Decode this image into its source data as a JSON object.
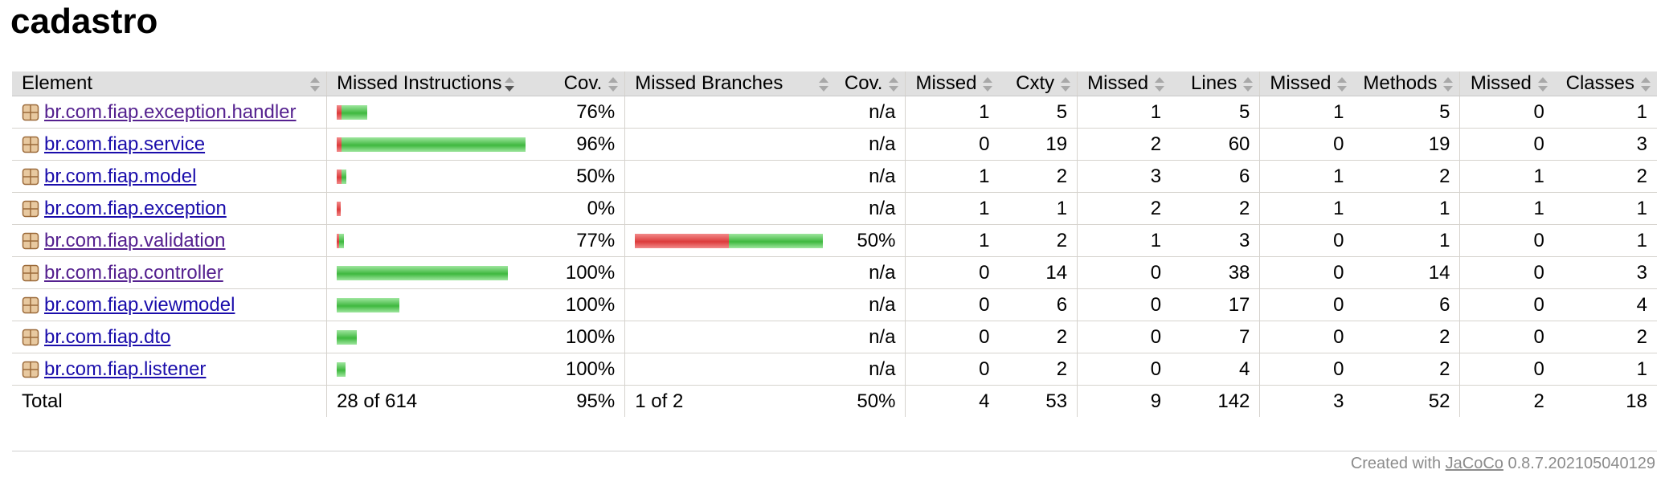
{
  "title": "cadastro",
  "headers": {
    "element": "Element",
    "missed_instructions": "Missed Instructions",
    "cov1": "Cov.",
    "missed_branches": "Missed Branches",
    "cov2": "Cov.",
    "missed_cxty": "Missed",
    "cxty": "Cxty",
    "missed_lines": "Missed",
    "lines": "Lines",
    "missed_methods": "Missed",
    "methods": "Methods",
    "missed_classes": "Missed",
    "classes": "Classes"
  },
  "rows": [
    {
      "name": "br.com.fiap.exception.handler",
      "visited": true,
      "instr_cov": "76%",
      "branch_cov": "n/a",
      "mc": "1",
      "c": "5",
      "ml": "1",
      "l": "5",
      "mm": "1",
      "m": "5",
      "mcl": "0",
      "cl": "1"
    },
    {
      "name": "br.com.fiap.service",
      "visited": false,
      "instr_cov": "96%",
      "branch_cov": "n/a",
      "mc": "0",
      "c": "19",
      "ml": "2",
      "l": "60",
      "mm": "0",
      "m": "19",
      "mcl": "0",
      "cl": "3"
    },
    {
      "name": "br.com.fiap.model",
      "visited": false,
      "instr_cov": "50%",
      "branch_cov": "n/a",
      "mc": "1",
      "c": "2",
      "ml": "3",
      "l": "6",
      "mm": "1",
      "m": "2",
      "mcl": "1",
      "cl": "2"
    },
    {
      "name": "br.com.fiap.exception",
      "visited": false,
      "instr_cov": "0%",
      "branch_cov": "n/a",
      "mc": "1",
      "c": "1",
      "ml": "2",
      "l": "2",
      "mm": "1",
      "m": "1",
      "mcl": "1",
      "cl": "1"
    },
    {
      "name": "br.com.fiap.validation",
      "visited": true,
      "instr_cov": "77%",
      "branch_cov": "50%",
      "mc": "1",
      "c": "2",
      "ml": "1",
      "l": "3",
      "mm": "0",
      "m": "1",
      "mcl": "0",
      "cl": "1"
    },
    {
      "name": "br.com.fiap.controller",
      "visited": true,
      "instr_cov": "100%",
      "branch_cov": "n/a",
      "mc": "0",
      "c": "14",
      "ml": "0",
      "l": "38",
      "mm": "0",
      "m": "14",
      "mcl": "0",
      "cl": "3"
    },
    {
      "name": "br.com.fiap.viewmodel",
      "visited": false,
      "instr_cov": "100%",
      "branch_cov": "n/a",
      "mc": "0",
      "c": "6",
      "ml": "0",
      "l": "17",
      "mm": "0",
      "m": "6",
      "mcl": "0",
      "cl": "4"
    },
    {
      "name": "br.com.fiap.dto",
      "visited": false,
      "instr_cov": "100%",
      "branch_cov": "n/a",
      "mc": "0",
      "c": "2",
      "ml": "0",
      "l": "7",
      "mm": "0",
      "m": "2",
      "mcl": "0",
      "cl": "2"
    },
    {
      "name": "br.com.fiap.listener",
      "visited": false,
      "instr_cov": "100%",
      "branch_cov": "n/a",
      "mc": "0",
      "c": "2",
      "ml": "0",
      "l": "4",
      "mm": "0",
      "m": "2",
      "mcl": "0",
      "cl": "1"
    }
  ],
  "total": {
    "label": "Total",
    "instr": "28 of 614",
    "instr_cov": "95%",
    "branch": "1 of 2",
    "branch_cov": "50%",
    "mc": "4",
    "c": "53",
    "ml": "9",
    "l": "142",
    "mm": "3",
    "m": "52",
    "mcl": "2",
    "cl": "18"
  },
  "footer": {
    "prefix": "Created with ",
    "link": "JaCoCo",
    "version": " 0.8.7.202105040129"
  },
  "colors": {
    "missed": "#dc3b3b",
    "covered": "#3fb83f",
    "link": "#1a0dab",
    "link_visited": "#55218f"
  }
}
